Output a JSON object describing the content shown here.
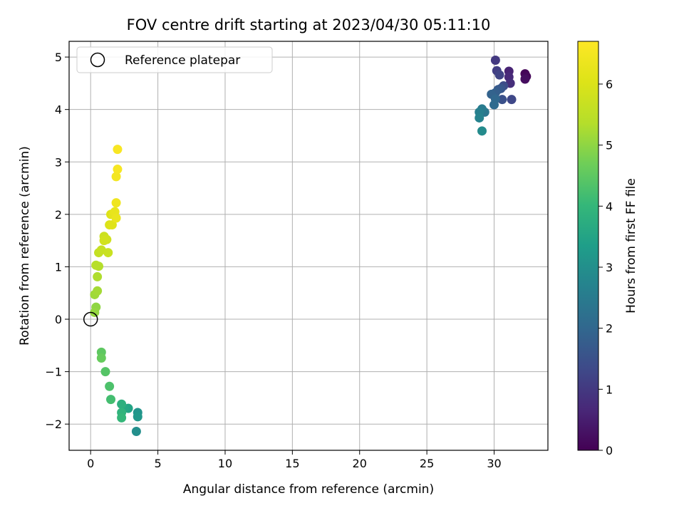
{
  "chart_data": {
    "type": "scatter",
    "title": "FOV centre drift starting at 2023/04/30 05:11:10",
    "xlabel": "Angular distance from reference (arcmin)",
    "ylabel": "Rotation from reference (arcmin)",
    "xlim": [
      -1.6,
      34.0
    ],
    "ylim": [
      -2.5,
      5.3
    ],
    "xticks": [
      0,
      5,
      10,
      15,
      20,
      25,
      30
    ],
    "yticks": [
      -2,
      -1,
      0,
      1,
      2,
      3,
      4,
      5
    ],
    "grid": true,
    "colormap": "viridis",
    "colorbar": {
      "label": "Hours from first FF file",
      "range": [
        0,
        6.7
      ],
      "ticks": [
        0,
        1,
        2,
        3,
        4,
        5,
        6
      ]
    },
    "legend": {
      "placement": "top-left",
      "entries": [
        "Reference platepar"
      ]
    },
    "reference_point": {
      "x": 0,
      "y": 0
    },
    "points": [
      {
        "x": 32.3,
        "y": 4.68,
        "c": 0.05
      },
      {
        "x": 32.4,
        "y": 4.63,
        "c": 0.1
      },
      {
        "x": 32.3,
        "y": 4.58,
        "c": 0.2
      },
      {
        "x": 31.1,
        "y": 4.73,
        "c": 0.6
      },
      {
        "x": 31.1,
        "y": 4.62,
        "c": 0.7
      },
      {
        "x": 31.2,
        "y": 4.5,
        "c": 0.8
      },
      {
        "x": 30.1,
        "y": 4.94,
        "c": 1.0
      },
      {
        "x": 30.2,
        "y": 4.74,
        "c": 1.1
      },
      {
        "x": 30.4,
        "y": 4.66,
        "c": 1.2
      },
      {
        "x": 31.3,
        "y": 4.19,
        "c": 1.3
      },
      {
        "x": 30.7,
        "y": 4.45,
        "c": 1.4
      },
      {
        "x": 30.6,
        "y": 4.19,
        "c": 1.5
      },
      {
        "x": 30.5,
        "y": 4.4,
        "c": 1.6
      },
      {
        "x": 30.3,
        "y": 4.38,
        "c": 1.7
      },
      {
        "x": 30.1,
        "y": 4.32,
        "c": 1.8
      },
      {
        "x": 29.8,
        "y": 4.29,
        "c": 1.9
      },
      {
        "x": 30.1,
        "y": 4.2,
        "c": 2.0
      },
      {
        "x": 30.0,
        "y": 4.09,
        "c": 2.1
      },
      {
        "x": 29.3,
        "y": 3.95,
        "c": 2.4
      },
      {
        "x": 29.1,
        "y": 4.01,
        "c": 2.5
      },
      {
        "x": 28.9,
        "y": 3.95,
        "c": 2.6
      },
      {
        "x": 28.9,
        "y": 3.84,
        "c": 2.7
      },
      {
        "x": 29.1,
        "y": 3.59,
        "c": 2.9
      },
      {
        "x": 3.4,
        "y": -2.14,
        "c": 3.0
      },
      {
        "x": 3.5,
        "y": -1.78,
        "c": 3.1
      },
      {
        "x": 3.5,
        "y": -1.86,
        "c": 3.2
      },
      {
        "x": 2.8,
        "y": -1.7,
        "c": 3.5
      },
      {
        "x": 2.5,
        "y": -1.7,
        "c": 3.6
      },
      {
        "x": 2.3,
        "y": -1.62,
        "c": 3.8
      },
      {
        "x": 2.3,
        "y": -1.78,
        "c": 3.9
      },
      {
        "x": 2.3,
        "y": -1.88,
        "c": 4.0
      },
      {
        "x": 1.5,
        "y": -1.53,
        "c": 4.2
      },
      {
        "x": 1.4,
        "y": -1.28,
        "c": 4.3
      },
      {
        "x": 1.1,
        "y": -1.0,
        "c": 4.4
      },
      {
        "x": 0.8,
        "y": -0.63,
        "c": 4.5
      },
      {
        "x": 0.8,
        "y": -0.74,
        "c": 4.6
      },
      {
        "x": 0.4,
        "y": 0.23,
        "c": 5.0
      },
      {
        "x": 0.3,
        "y": 0.13,
        "c": 5.05
      },
      {
        "x": 0.3,
        "y": 0.47,
        "c": 5.15
      },
      {
        "x": 0.5,
        "y": 0.54,
        "c": 5.2
      },
      {
        "x": 0.5,
        "y": 0.81,
        "c": 5.3
      },
      {
        "x": 0.6,
        "y": 1.01,
        "c": 5.35
      },
      {
        "x": 0.4,
        "y": 1.03,
        "c": 5.4
      },
      {
        "x": 0.6,
        "y": 1.27,
        "c": 5.6
      },
      {
        "x": 0.8,
        "y": 1.32,
        "c": 5.65
      },
      {
        "x": 1.3,
        "y": 1.27,
        "c": 5.7
      },
      {
        "x": 1.0,
        "y": 1.58,
        "c": 5.75
      },
      {
        "x": 1.2,
        "y": 1.52,
        "c": 5.8
      },
      {
        "x": 1.0,
        "y": 1.5,
        "c": 5.85
      },
      {
        "x": 1.4,
        "y": 1.8,
        "c": 6.0
      },
      {
        "x": 1.5,
        "y": 2.0,
        "c": 6.05
      },
      {
        "x": 1.6,
        "y": 1.8,
        "c": 6.1
      },
      {
        "x": 1.7,
        "y": 2.0,
        "c": 6.2
      },
      {
        "x": 1.8,
        "y": 2.05,
        "c": 6.25
      },
      {
        "x": 1.9,
        "y": 1.93,
        "c": 6.3
      },
      {
        "x": 1.9,
        "y": 2.22,
        "c": 6.4
      },
      {
        "x": 1.9,
        "y": 2.72,
        "c": 6.5
      },
      {
        "x": 2.0,
        "y": 2.86,
        "c": 6.55
      },
      {
        "x": 2.0,
        "y": 3.24,
        "c": 6.6
      }
    ]
  }
}
